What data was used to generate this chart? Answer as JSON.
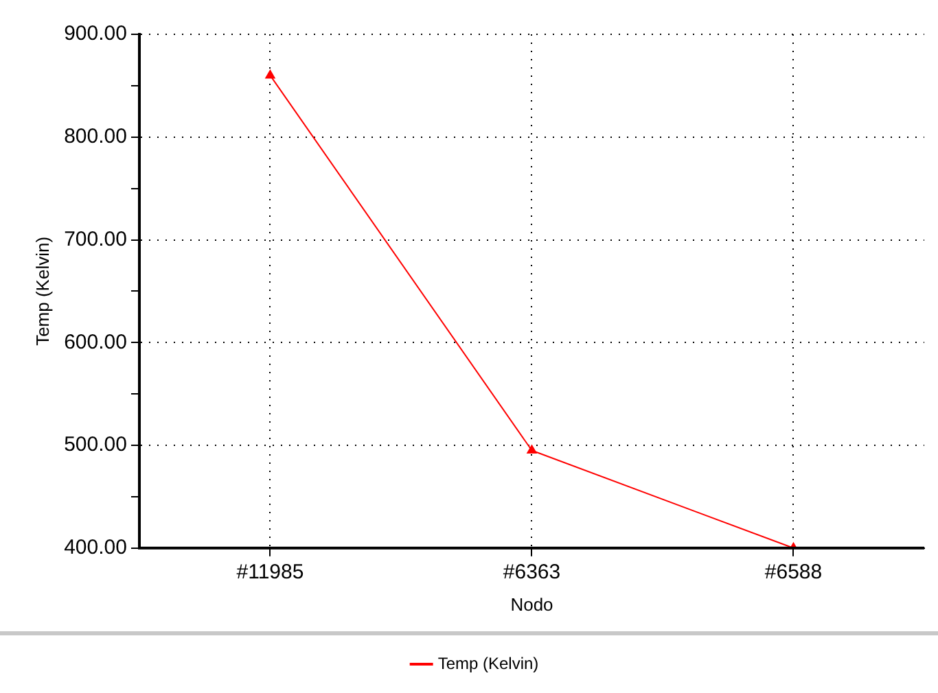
{
  "chart_data": {
    "type": "line",
    "xlabel": "Nodo",
    "ylabel": "Temp (Kelvin)",
    "categories": [
      "#11985",
      "#6363",
      "#6588"
    ],
    "series": [
      {
        "name": "Temp (Kelvin)",
        "color": "#ff0000",
        "values": [
          860,
          495,
          400
        ]
      }
    ],
    "ylim": [
      400,
      900
    ],
    "yticks": [
      {
        "value": 400,
        "label": "400.00"
      },
      {
        "value": 450,
        "label": null
      },
      {
        "value": 500,
        "label": "500.00"
      },
      {
        "value": 550,
        "label": null
      },
      {
        "value": 600,
        "label": "600.00"
      },
      {
        "value": 650,
        "label": null
      },
      {
        "value": 700,
        "label": "700.00"
      },
      {
        "value": 750,
        "label": null
      },
      {
        "value": 800,
        "label": "800.00"
      },
      {
        "value": 850,
        "label": null
      },
      {
        "value": 900,
        "label": "900.00"
      }
    ],
    "grid": true,
    "legend": "bottom",
    "marker": "triangle",
    "line_style": "solid"
  }
}
